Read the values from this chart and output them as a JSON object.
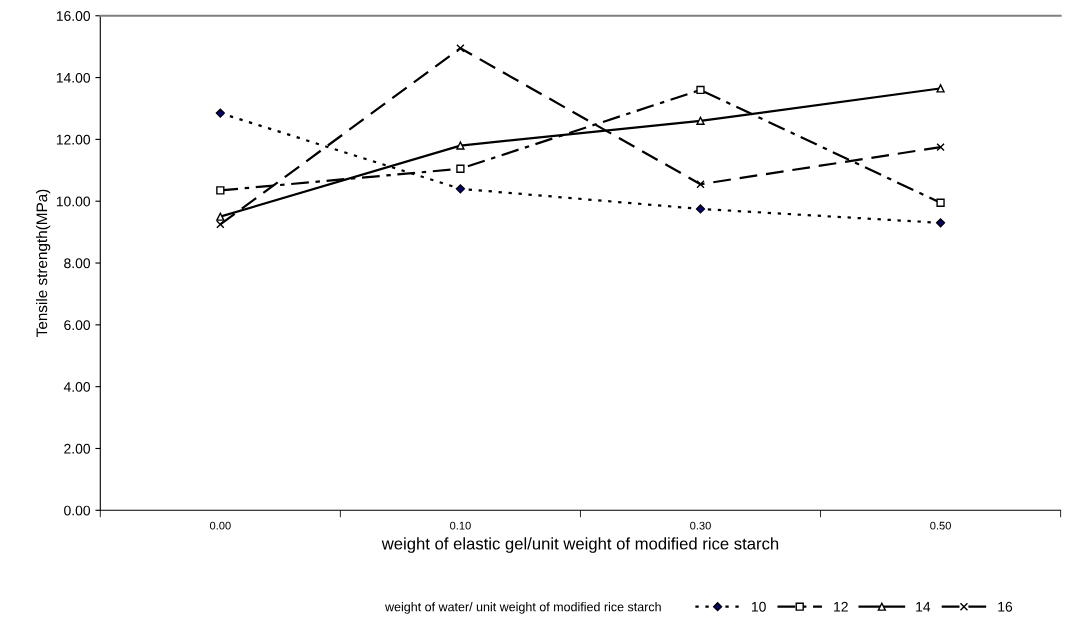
{
  "chart_data": {
    "type": "line",
    "xlabel": "weight of elastic gel/unit weight of modified rice starch",
    "ylabel": "Tensile strength(MPa)",
    "legend_title": "weight of water/ unit weight of modified rice starch",
    "categories": [
      "0.00",
      "0.10",
      "0.30",
      "0.50"
    ],
    "ylim": [
      0,
      16
    ],
    "yticks": [
      {
        "value": 0,
        "label": "0.00"
      },
      {
        "value": 2,
        "label": "2.00"
      },
      {
        "value": 4,
        "label": "4.00"
      },
      {
        "value": 6,
        "label": "6.00"
      },
      {
        "value": 8,
        "label": "8.00"
      },
      {
        "value": 10,
        "label": "10.00"
      },
      {
        "value": 12,
        "label": "12.00"
      },
      {
        "value": 14,
        "label": "14.00"
      },
      {
        "value": 16,
        "label": "16.00"
      }
    ],
    "grid": false,
    "legend": "bottom",
    "series": [
      {
        "name": "10",
        "color": "#000000",
        "marker": "diamond",
        "line_style": "dotted",
        "values": [
          12.85,
          10.4,
          9.75,
          9.3
        ]
      },
      {
        "name": "12",
        "color": "#000000",
        "marker": "square",
        "line_style": "dashdot",
        "values": [
          10.35,
          11.05,
          13.6,
          9.95
        ]
      },
      {
        "name": "14",
        "color": "#000000",
        "marker": "triangle",
        "line_style": "solid",
        "values": [
          9.5,
          11.8,
          12.6,
          13.65
        ]
      },
      {
        "name": "16",
        "color": "#000000",
        "marker": "cross",
        "line_style": "dashed",
        "values": [
          9.25,
          14.95,
          10.55,
          11.75
        ]
      }
    ]
  }
}
